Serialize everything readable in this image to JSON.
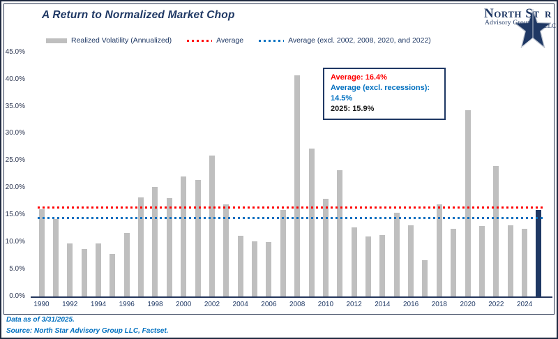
{
  "header": {
    "title": "A Return to Normalized Market Chop"
  },
  "logo": {
    "name_part1": "North St",
    "name_part2": "r",
    "subtitle": "Advisory Group",
    "suffix": "LLC"
  },
  "legend": {
    "items": [
      {
        "label": "Realized Volatility (Annualized)",
        "swatch": "bar"
      },
      {
        "label": "Average",
        "swatch": "dotted-red"
      },
      {
        "label": "Average (excl. 2002, 2008, 2020, and 2022)",
        "swatch": "dotted-blue"
      }
    ]
  },
  "annotation": {
    "average": "Average: 16.4%",
    "average_excl": "Average (excl. recessions): 14.5%",
    "current": "2025: 15.9%"
  },
  "footer": {
    "data_as_of": "Data as of 3/31/2025.",
    "source": "Source: North Star Advisory Group LLC, Factset."
  },
  "colors": {
    "bar": "#BFBFBF",
    "highlight": "#1F3864",
    "average_line": "#FF0000",
    "average_excl_line": "#0070C0",
    "accent_navy": "#1F3864",
    "footer_blue": "#0070C0"
  },
  "chart_data": {
    "type": "bar",
    "title": "A Return to Normalized Market Chop",
    "series_name": "Realized Volatility (Annualized)",
    "unit": "%",
    "categories": [
      1990,
      1991,
      1992,
      1993,
      1994,
      1995,
      1996,
      1997,
      1998,
      1999,
      2000,
      2001,
      2002,
      2003,
      2004,
      2005,
      2006,
      2007,
      2008,
      2009,
      2010,
      2011,
      2012,
      2013,
      2014,
      2015,
      2016,
      2017,
      2018,
      2019,
      2020,
      2021,
      2022,
      2023,
      2024,
      2025
    ],
    "values": [
      16.0,
      14.2,
      9.7,
      8.7,
      9.8,
      7.8,
      11.7,
      18.2,
      20.2,
      18.1,
      22.1,
      21.4,
      25.9,
      17.0,
      11.2,
      10.2,
      10.0,
      15.9,
      40.7,
      27.2,
      18.0,
      23.2,
      12.7,
      11.1,
      11.3,
      15.4,
      13.1,
      6.7,
      17.0,
      12.5,
      34.3,
      13.0,
      24.0,
      13.1,
      12.5,
      15.9
    ],
    "bar_color": "#BFBFBF",
    "highlight": {
      "category": 2025,
      "color": "#1F3864"
    },
    "ylim": [
      0,
      45
    ],
    "grid": false,
    "legend_position": "top",
    "y_ticks": [
      {
        "value": 45,
        "label": "45.0%"
      },
      {
        "value": 40,
        "label": "40.0%"
      },
      {
        "value": 35,
        "label": "35.0%"
      },
      {
        "value": 30,
        "label": "30.0%"
      },
      {
        "value": 25,
        "label": "25.0%"
      },
      {
        "value": 20,
        "label": "20.0%"
      },
      {
        "value": 15,
        "label": "15.0%"
      },
      {
        "value": 10,
        "label": "10.0%"
      },
      {
        "value": 5,
        "label": "5.0%"
      },
      {
        "value": 0,
        "label": "0.0%"
      }
    ],
    "x_tick_labels": [
      "1990",
      "1992",
      "1994",
      "1996",
      "1998",
      "2000",
      "2002",
      "2004",
      "2006",
      "2008",
      "2010",
      "2012",
      "2014",
      "2016",
      "2018",
      "2020",
      "2022",
      "2024"
    ],
    "reference_lines": [
      {
        "name": "Average",
        "value": 16.4,
        "color": "#FF0000",
        "style": "dotted"
      },
      {
        "name": "Average (excl. 2002, 2008, 2020, and 2022)",
        "value": 14.5,
        "color": "#0070C0",
        "style": "dotted"
      }
    ]
  }
}
